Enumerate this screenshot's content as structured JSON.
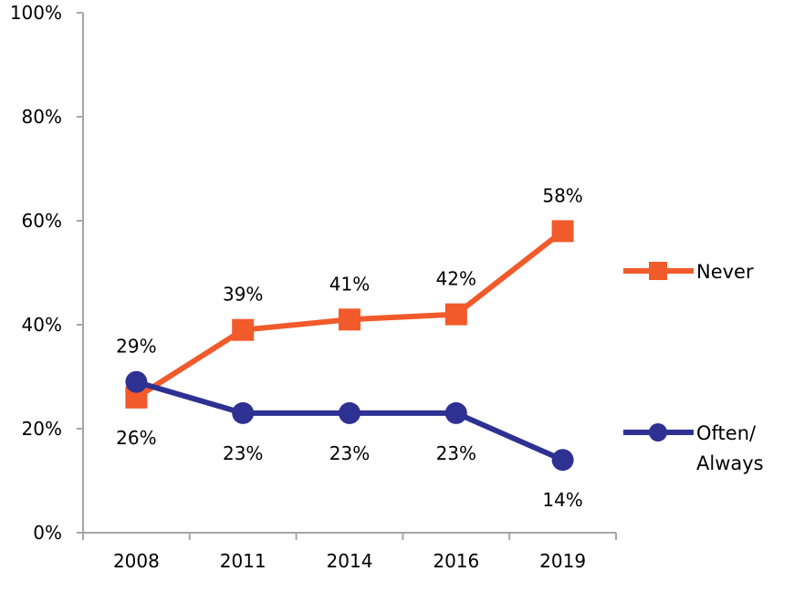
{
  "chart_data": {
    "type": "line",
    "categories": [
      "2008",
      "2011",
      "2014",
      "2016",
      "2019"
    ],
    "ylim": [
      0,
      100
    ],
    "yticks": [
      0,
      20,
      40,
      60,
      80,
      100
    ],
    "ytick_labels": [
      "0%",
      "20%",
      "40%",
      "60%",
      "80%",
      "100%"
    ],
    "grid": false,
    "legend_position": "right",
    "series": [
      {
        "name": "Never",
        "values": [
          26,
          39,
          41,
          42,
          58
        ],
        "labels": [
          "26%",
          "39%",
          "41%",
          "42%",
          "58%"
        ],
        "color": "#F15A2B",
        "marker": "square"
      },
      {
        "name": "Often/ Always",
        "name_lines": [
          "Often/",
          "Always"
        ],
        "values": [
          29,
          23,
          23,
          23,
          14
        ],
        "labels": [
          "29%",
          "23%",
          "23%",
          "23%",
          "14%"
        ],
        "color": "#2E3192",
        "marker": "circle"
      }
    ]
  }
}
